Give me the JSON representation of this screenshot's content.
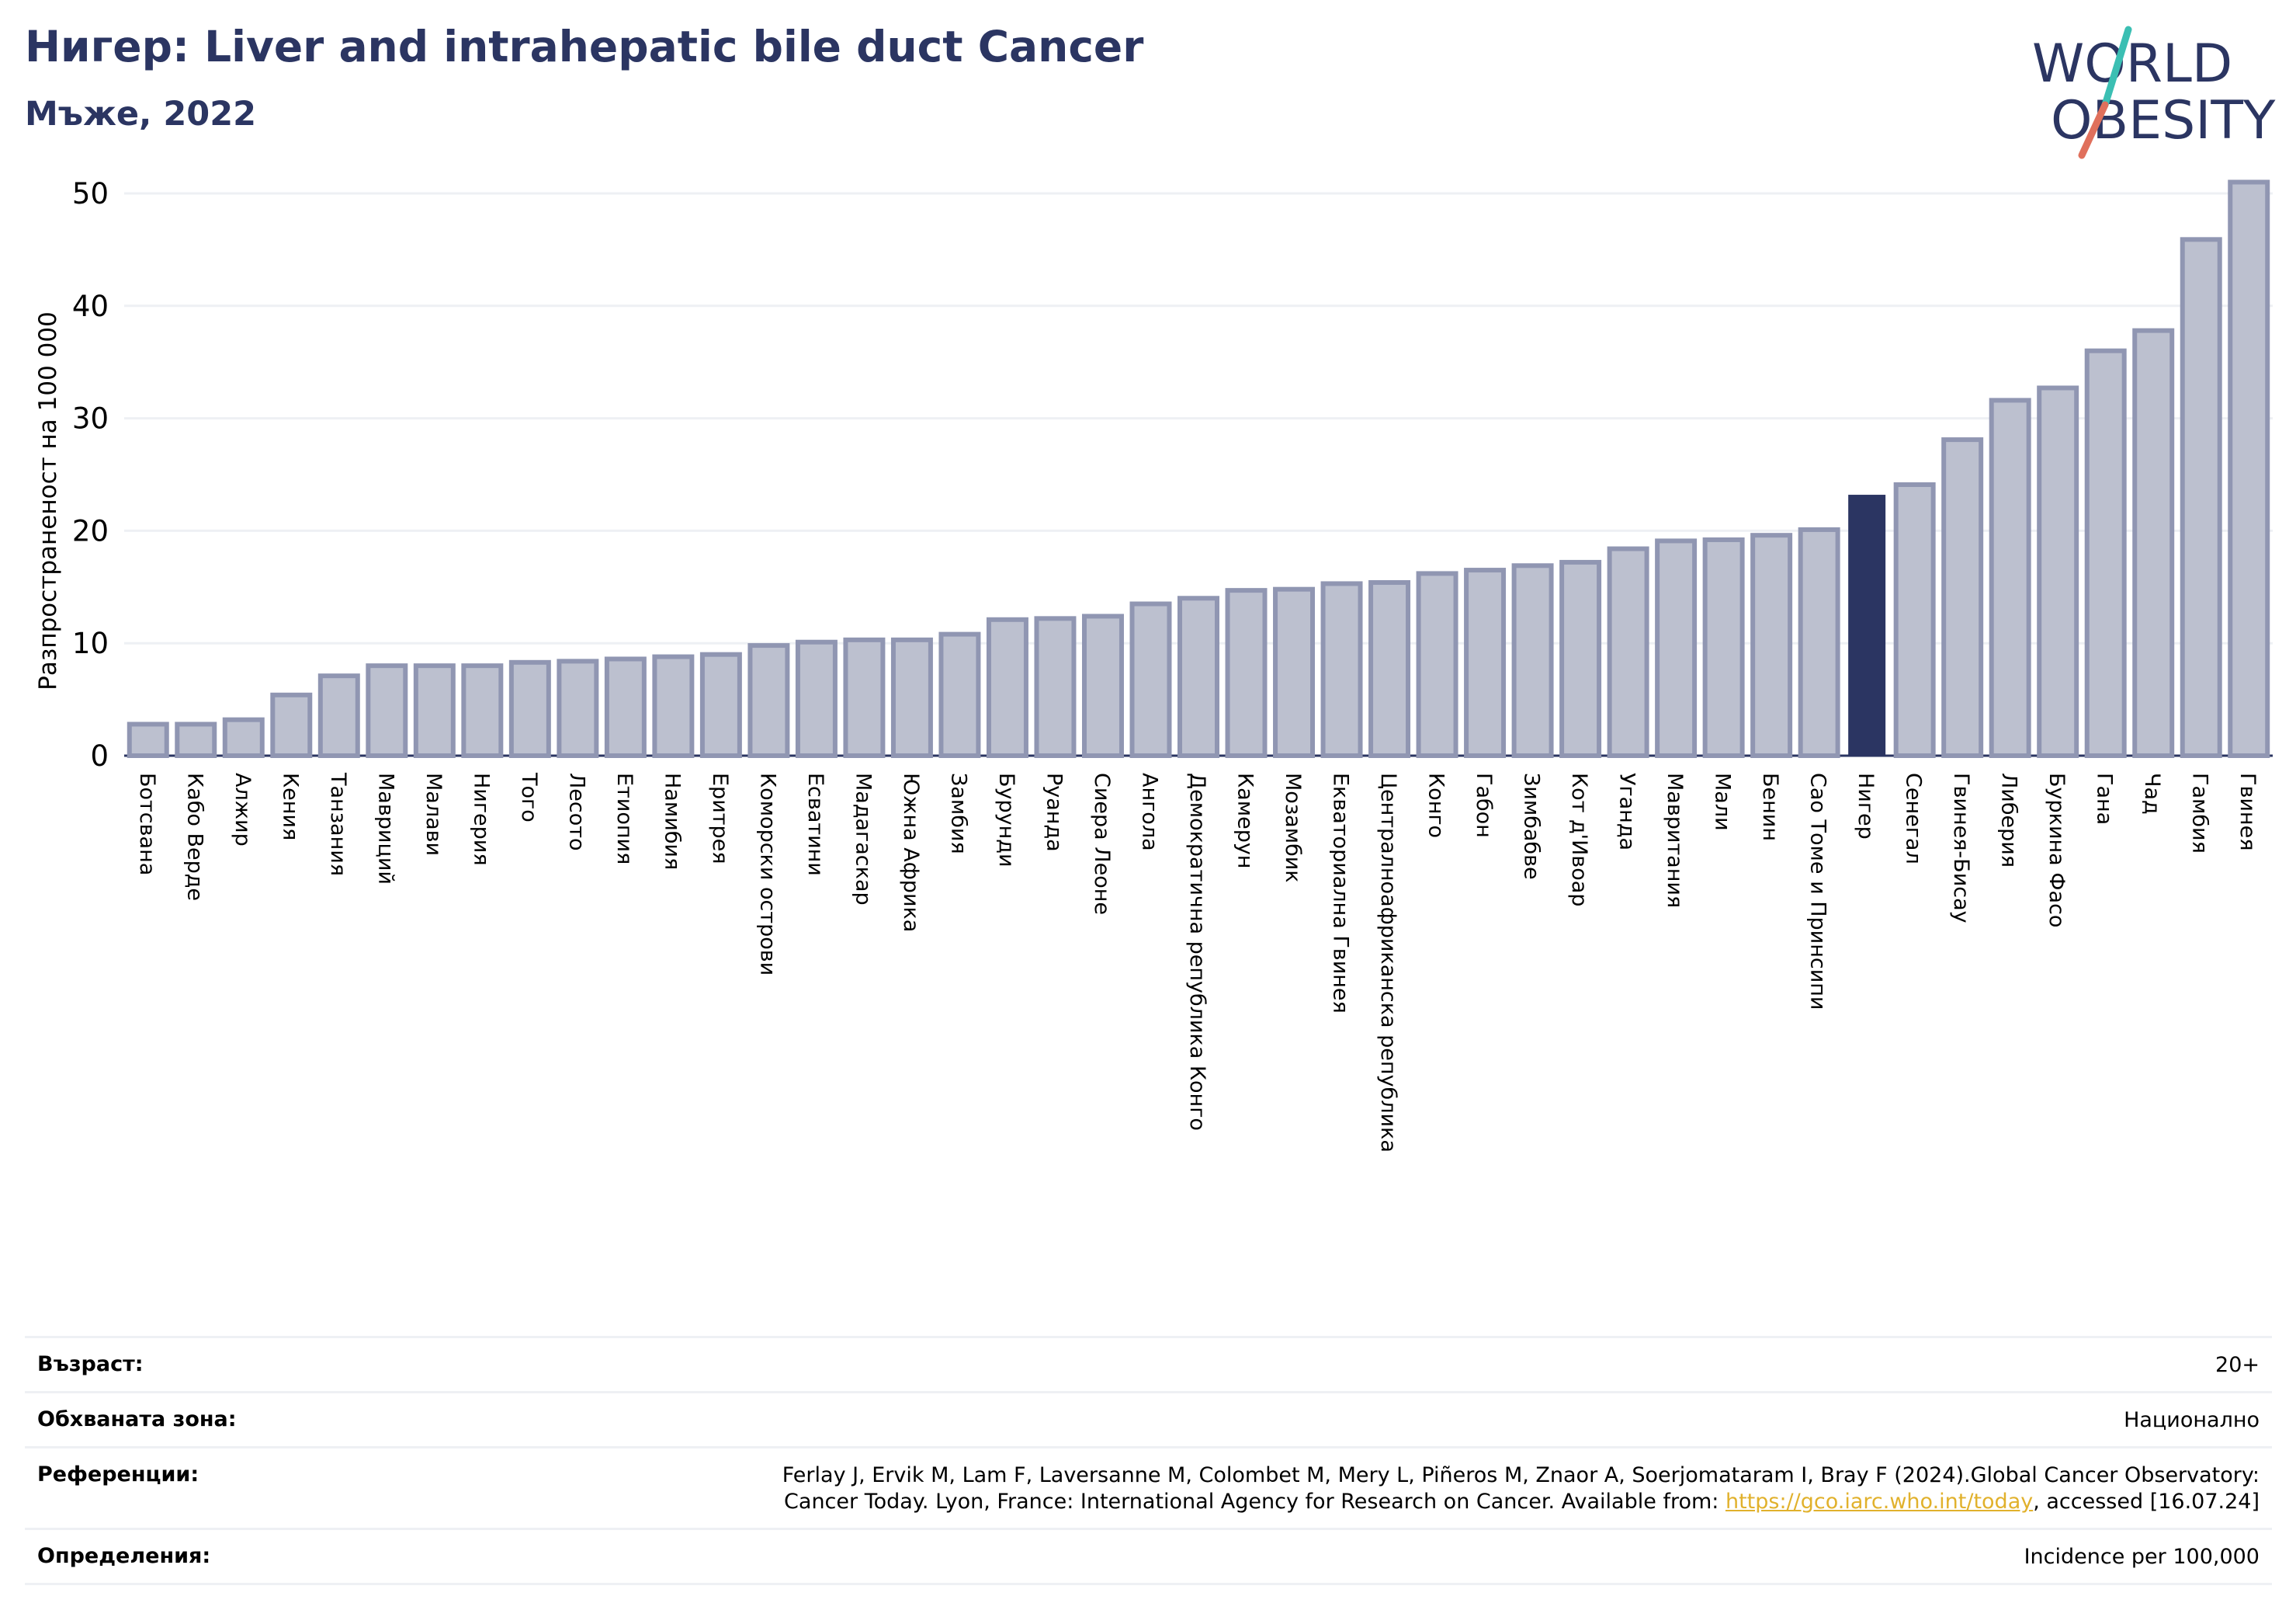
{
  "header": {
    "title": "Нигер: Liver and intrahepatic bile duct Cancer",
    "subtitle": "Мъже, 2022"
  },
  "logo": {
    "line1": "WORLD",
    "line2": "OBESITY",
    "slash_colors": [
      "#3bbfb3",
      "#e0705c"
    ],
    "text_color": "#2b3562"
  },
  "colors": {
    "bar_default": "#bcc0cf",
    "bar_outline": "#9096b2",
    "bar_highlight": "#2b3562",
    "grid": "#eef0f4",
    "title": "#2b3562",
    "link": "#e1b12c"
  },
  "chart_data": {
    "type": "bar",
    "ylabel": "Разпространеност  на 100 000",
    "xlabel": "",
    "ylim": [
      0,
      52
    ],
    "yticks": [
      0,
      10,
      20,
      30,
      40,
      50
    ],
    "grid": true,
    "highlight": "Нигер",
    "categories": [
      "Ботсвана",
      "Кабо Верде",
      "Алжир",
      "Кения",
      "Танзания",
      "Мавриций",
      "Малави",
      "Нигерия",
      "Того",
      "Лесото",
      "Етиопия",
      "Намибия",
      "Еритрея",
      "Коморски острови",
      "Есватини",
      "Мадагаскар",
      "Южна Африка",
      "Замбия",
      "Бурунди",
      "Руанда",
      "Сиера Леоне",
      "Ангола",
      "Демократична република Конго",
      "Камерун",
      "Мозамбик",
      "Екваториална Гвинея",
      "Централноафриканска република",
      "Конго",
      "Габон",
      "Зимбабве",
      "Кот д'Ивоар",
      "Уганда",
      "Мавритания",
      "Мали",
      "Бенин",
      "Сао Томе и Принсипи",
      "Нигер",
      "Сенегал",
      "Гвинея-Бисау",
      "Либерия",
      "Буркина Фасо",
      "Гана",
      "Чад",
      "Гамбия",
      "Гвинея"
    ],
    "values": [
      2.8,
      2.8,
      3.2,
      5.4,
      7.1,
      8.0,
      8.0,
      8.0,
      8.3,
      8.4,
      8.6,
      8.8,
      9.0,
      9.8,
      10.1,
      10.3,
      10.3,
      10.8,
      12.1,
      12.2,
      12.4,
      13.5,
      14.0,
      14.7,
      14.8,
      15.3,
      15.4,
      16.2,
      16.5,
      16.9,
      17.2,
      18.4,
      19.1,
      19.2,
      19.6,
      20.1,
      23.2,
      24.1,
      28.1,
      31.6,
      32.7,
      36.0,
      37.8,
      45.9,
      51.0
    ]
  },
  "info": {
    "age_label": "Възраст:",
    "age_value": "20+",
    "area_label": "Обхваната зона:",
    "area_value": "Национално",
    "refs_label": "Референции:",
    "refs_line1": "Ferlay J, Ervik M, Lam F, Laversanne M, Colombet M, Mery L, Piñeros M, Znaor A, Soerjomataram I, Bray F (2024).Global Cancer Observatory:",
    "refs_line2_pre": "Cancer Today. Lyon, France: International Agency for Research on Cancer. Available from: ",
    "refs_link": "https://gco.iarc.who.int/today",
    "refs_line2_post": ", accessed [16.07.24]",
    "defs_label": "Определения:",
    "defs_value": "Incidence per 100,000"
  }
}
